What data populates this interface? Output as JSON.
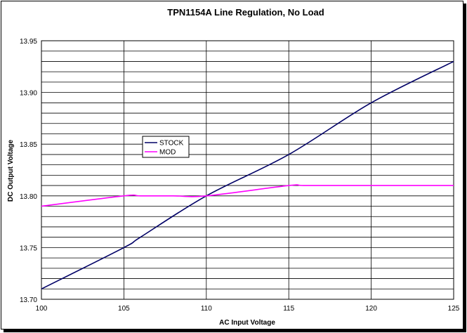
{
  "chart_data": {
    "type": "line",
    "title": "TPN1154A Line Regulation, No Load",
    "xlabel": "AC Input Voltage",
    "ylabel": "DC Output Voltage",
    "xlim": [
      100,
      125
    ],
    "ylim": [
      13.7,
      13.95
    ],
    "x_ticks": [
      "100",
      "105",
      "110",
      "115",
      "120",
      "125"
    ],
    "y_ticks": [
      "13.70",
      "13.75",
      "13.80",
      "13.85",
      "13.90",
      "13.95"
    ],
    "grid": true,
    "legend_position": "center-left",
    "series": [
      {
        "name": "STOCK",
        "color": "#000066",
        "x": [
          100,
          105,
          106,
          110,
          115,
          120,
          125
        ],
        "y": [
          13.71,
          13.75,
          13.76,
          13.8,
          13.84,
          13.89,
          13.93
        ]
      },
      {
        "name": "MOD",
        "color": "#ff00ff",
        "x": [
          100,
          105,
          106,
          108,
          110,
          115,
          116,
          120,
          125
        ],
        "y": [
          13.79,
          13.8,
          13.8,
          13.8,
          13.8,
          13.81,
          13.81,
          13.81,
          13.81
        ]
      }
    ]
  }
}
